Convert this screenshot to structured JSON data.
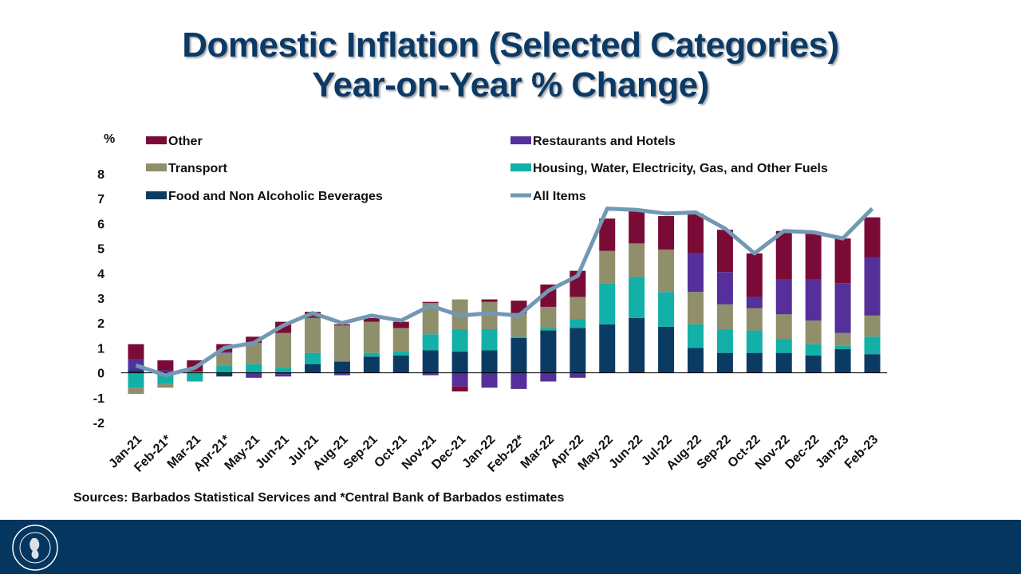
{
  "title_line1": "Domestic Inflation (Selected Categories)",
  "title_line2": "Year-on-Year % Change)",
  "source_text": "Sources: Barbados Statistical Services and *Central Bank of Barbados estimates",
  "seal_text": "CENTRAL BANK OF BARBADOS",
  "colors": {
    "title": "#0c3a66",
    "food": "#0b3b63",
    "housing": "#12b0a6",
    "transport": "#8f8f6c",
    "restaurants": "#55309a",
    "other": "#7a0b36",
    "all_items": "#7299b3",
    "footer": "#05365f"
  },
  "chart_data": {
    "type": "bar",
    "stacked": true,
    "title": "Domestic Inflation (Selected Categories) Year-on-Year % Change)",
    "ylabel": "%",
    "ylim": [
      -2,
      8
    ],
    "yticks": [
      8,
      7,
      6,
      5,
      4,
      3,
      2,
      1,
      0,
      -1,
      -2
    ],
    "categories": [
      "Jan-21",
      "Feb-21*",
      "Mar-21",
      "Apr-21*",
      "May-21",
      "Jun-21",
      "Jul-21",
      "Aug-21",
      "Sep-21",
      "Oct-21",
      "Nov-21",
      "Dec-21",
      "Jan-22",
      "Feb-22*",
      "Mar-22",
      "Apr-22",
      "May-22",
      "Jun-22",
      "Jul-22",
      "Aug-22",
      "Sep-22",
      "Oct-22",
      "Nov-22",
      "Dec-22",
      "Jan-23",
      "Feb-23"
    ],
    "series": [
      {
        "name": "Food and Non Alcoholic Beverages",
        "key": "food",
        "values": [
          0.1,
          -0.05,
          0.0,
          -0.15,
          0.0,
          -0.05,
          0.35,
          0.45,
          0.65,
          0.7,
          0.9,
          0.85,
          0.9,
          1.4,
          1.7,
          1.8,
          1.95,
          2.2,
          1.85,
          1.0,
          0.8,
          0.8,
          0.8,
          0.7,
          0.95,
          0.75
        ]
      },
      {
        "name": "Housing, Water, Electricity, Gas, and Other Fuels",
        "key": "housing",
        "values": [
          -0.6,
          -0.4,
          -0.35,
          0.3,
          0.35,
          0.2,
          0.45,
          0.0,
          0.15,
          0.15,
          0.65,
          0.9,
          0.85,
          0.05,
          0.1,
          0.35,
          1.65,
          1.65,
          1.4,
          0.95,
          0.95,
          0.9,
          0.55,
          0.45,
          0.15,
          0.7
        ]
      },
      {
        "name": "Transport",
        "key": "transport",
        "values": [
          -0.25,
          -0.15,
          0.05,
          0.5,
          0.85,
          1.4,
          1.4,
          1.45,
          1.25,
          0.95,
          1.25,
          1.2,
          1.1,
          0.95,
          0.85,
          0.9,
          1.3,
          1.35,
          1.7,
          1.3,
          1.0,
          0.9,
          1.0,
          0.95,
          0.5,
          0.85
        ]
      },
      {
        "name": "Restaurants and Hotels",
        "key": "restaurants",
        "values": [
          0.45,
          0.1,
          0.0,
          0.05,
          -0.2,
          -0.1,
          0.05,
          -0.1,
          0.0,
          0.0,
          -0.1,
          -0.55,
          -0.6,
          -0.65,
          -0.35,
          -0.2,
          0.0,
          0.0,
          0.0,
          1.55,
          1.3,
          0.45,
          1.4,
          1.65,
          2.0,
          2.35
        ]
      },
      {
        "name": "Other",
        "key": "other",
        "values": [
          0.6,
          0.4,
          0.45,
          0.3,
          0.25,
          0.45,
          0.2,
          0.05,
          0.15,
          0.25,
          0.05,
          -0.2,
          0.1,
          0.5,
          0.9,
          1.05,
          1.3,
          1.35,
          1.35,
          1.6,
          1.7,
          1.75,
          1.95,
          1.85,
          1.8,
          1.6
        ]
      }
    ],
    "line": {
      "name": "All Items",
      "key": "all_items",
      "values": [
        0.3,
        -0.1,
        0.2,
        1.0,
        1.2,
        1.9,
        2.4,
        2.0,
        2.3,
        2.1,
        2.7,
        2.3,
        2.4,
        2.3,
        3.3,
        3.9,
        6.6,
        6.55,
        6.4,
        6.45,
        5.8,
        4.8,
        5.7,
        5.65,
        5.4,
        6.6
      ]
    },
    "legend": [
      {
        "label": "Other",
        "key": "other",
        "kind": "bar"
      },
      {
        "label": "Restaurants and Hotels",
        "key": "restaurants",
        "kind": "bar"
      },
      {
        "label": "Transport",
        "key": "transport",
        "kind": "bar"
      },
      {
        "label": "Housing, Water, Electricity, Gas, and Other Fuels",
        "key": "housing",
        "kind": "bar"
      },
      {
        "label": "Food and Non Alcoholic Beverages",
        "key": "food",
        "kind": "bar"
      },
      {
        "label": "All Items",
        "key": "all_items",
        "kind": "line"
      }
    ]
  }
}
